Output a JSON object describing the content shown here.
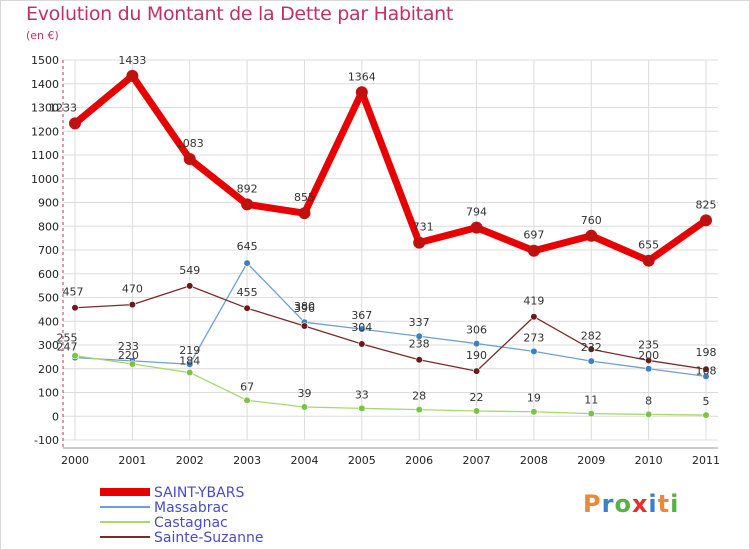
{
  "title": "Evolution du Montant de la Dette par Habitant",
  "unit": "(en €)",
  "logo": {
    "text": "Proxiti",
    "colors": [
      "#e8893b",
      "#3a7fd0",
      "#58b04a",
      "#e03030",
      "#3a7fd0",
      "#e8893b",
      "#58b04a"
    ]
  },
  "chart_data": {
    "type": "line",
    "x": [
      "2000",
      "2001",
      "2002",
      "2003",
      "2004",
      "2005",
      "2006",
      "2007",
      "2008",
      "2009",
      "2010",
      "2011"
    ],
    "ylim": [
      -100,
      1500
    ],
    "yticks": [
      -100,
      0,
      100,
      200,
      300,
      400,
      500,
      600,
      700,
      800,
      900,
      1000,
      1100,
      1200,
      1300,
      1400,
      1500
    ],
    "grid": true,
    "legend_position": "bottom-left",
    "series": [
      {
        "name": "SAINT-YBARS",
        "color": "#e80000",
        "marker": "#c01010",
        "width": 7,
        "r": 6,
        "values": [
          1233,
          1433,
          1083,
          892,
          855,
          1364,
          731,
          794,
          697,
          760,
          655,
          825
        ]
      },
      {
        "name": "Massabrac",
        "color": "#6fa0d0",
        "marker": "#3b7fc8",
        "width": 1.3,
        "r": 3.3,
        "values": [
          247,
          233,
          219,
          645,
          396,
          367,
          337,
          306,
          273,
          232,
          200,
          168
        ]
      },
      {
        "name": "Castagnac",
        "color": "#a6d96a",
        "marker": "#7cc243",
        "width": 1.3,
        "r": 3.3,
        "values": [
          255,
          220,
          184,
          67,
          39,
          33,
          28,
          22,
          19,
          11,
          8,
          5
        ]
      },
      {
        "name": "Sainte-Suzanne",
        "color": "#7b2a2a",
        "marker": "#6a1a1a",
        "width": 1.3,
        "r": 3.3,
        "values": [
          457,
          470,
          549,
          455,
          380,
          304,
          238,
          190,
          419,
          282,
          235,
          198
        ]
      }
    ]
  }
}
